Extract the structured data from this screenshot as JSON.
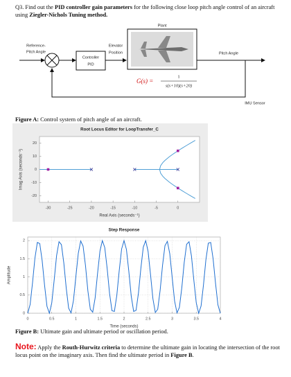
{
  "question": [
    {
      "text": "Q3. Find out the ",
      "bold": false
    },
    {
      "text": "PID controller gain parameters",
      "bold": true
    },
    {
      "text": " for the following close loop pitch angle control of an aircraft using ",
      "bold": false
    },
    {
      "text": "Ziegler-Nichols Tuning method.",
      "bold": true
    }
  ],
  "diagram": {
    "plant": "Plant",
    "input": [
      "Reference-",
      "Pitch Angle"
    ],
    "controller": [
      "Controller",
      "PID"
    ],
    "actuator": [
      "Elevator",
      "Position"
    ],
    "transfer": {
      "lhs": "G(s) =",
      "numerator": "1",
      "denominator": "s(s+10)(s+20)"
    },
    "output": "Pitch Angle",
    "sensor": "IMU Sensor"
  },
  "figure_a": [
    {
      "text": "Figure A:",
      "bold": true
    },
    {
      "text": " Control system of pitch angle of an aircraft.",
      "bold": false
    }
  ],
  "chart_data": [
    {
      "type": "line",
      "title": "Root Locus Editor for LoopTransfer_C",
      "xlabel": "Real Axis (seconds⁻¹)",
      "ylabel": "Imag Axis (seconds⁻¹)",
      "xlim": [
        -32,
        5
      ],
      "ylim": [
        -25,
        25
      ],
      "xticks": [
        -30,
        -25,
        -20,
        -15,
        -10,
        -5,
        0
      ],
      "yticks": [
        -20,
        -10,
        0,
        10,
        20
      ],
      "grid": false,
      "series": [
        {
          "color": "#4f9fd6",
          "marker": "none",
          "x": [
            -32,
            -20
          ],
          "values": [
            0,
            0
          ]
        },
        {
          "color": "#4f9fd6",
          "marker": "none",
          "x": [
            -10,
            -4.23,
            0
          ],
          "values": [
            0,
            0,
            0
          ]
        },
        {
          "color": "#4f9fd6",
          "marker": "none",
          "x": [
            -4.23,
            -4,
            -3.5,
            -3,
            -2,
            -1,
            0,
            1,
            2,
            3,
            4
          ],
          "values": [
            0,
            2.83,
            5.17,
            6.86,
            9.59,
            11.96,
            14.14,
            16.22,
            18.22,
            20.17,
            22.09
          ]
        },
        {
          "color": "#4f9fd6",
          "marker": "none",
          "x": [
            -4.23,
            -4,
            -3.5,
            -3,
            -2,
            -1,
            0,
            1,
            2,
            3,
            4
          ],
          "values": [
            0,
            -2.83,
            -5.17,
            -6.86,
            -9.59,
            -11.96,
            -14.14,
            -16.22,
            -18.22,
            -20.17,
            -22.09
          ]
        },
        {
          "color": "#2b2b8f",
          "marker": "x",
          "x": [
            -20,
            -10,
            0
          ],
          "values": [
            0,
            0,
            0
          ]
        },
        {
          "color": "#a020a0",
          "marker": "square",
          "x": [
            -30,
            0,
            0
          ],
          "values": [
            0,
            14.14,
            -14.14
          ]
        }
      ]
    },
    {
      "type": "line",
      "title": "Step Response",
      "xlabel": "Time (seconds)",
      "ylabel": "Amplitude",
      "xlim": [
        0,
        4
      ],
      "ylim": [
        0,
        2.1
      ],
      "xticks": [
        0,
        0.5,
        1,
        1.5,
        2,
        2.5,
        3,
        3.5,
        4
      ],
      "yticks": [
        0,
        0.5,
        1,
        1.5,
        2
      ],
      "grid": true,
      "x": [
        0,
        0.05,
        0.1,
        0.15,
        0.2,
        0.25,
        0.3,
        0.35,
        0.4,
        0.45,
        0.5,
        0.55,
        0.6,
        0.65,
        0.7,
        0.75,
        0.8,
        0.85,
        0.9,
        0.95,
        1,
        1.05,
        1.1,
        1.15,
        1.2,
        1.25,
        1.3,
        1.35,
        1.4,
        1.45,
        1.5,
        1.55,
        1.6,
        1.65,
        1.7,
        1.75,
        1.8,
        1.85,
        1.9,
        1.95,
        2,
        2.05,
        2.1,
        2.15,
        2.2,
        2.25,
        2.3,
        2.35,
        2.4,
        2.45,
        2.5,
        2.55,
        2.6,
        2.65,
        2.7,
        2.75,
        2.8,
        2.85,
        2.9,
        2.95,
        3,
        3.05,
        3.1,
        3.15,
        3.2,
        3.25,
        3.3,
        3.35,
        3.4,
        3.45,
        3.5,
        3.55,
        3.6,
        3.65,
        3.7,
        3.75,
        3.8,
        3.85,
        3.9,
        3.95,
        4
      ],
      "series": [
        {
          "color": "#1f6fd0",
          "marker": "none",
          "values": [
            0,
            0.24,
            0.84,
            1.52,
            1.95,
            1.92,
            1.45,
            0.77,
            0.19,
            0,
            0.29,
            0.92,
            1.59,
            1.97,
            1.89,
            1.38,
            0.69,
            0.14,
            0.01,
            0.35,
            1.01,
            1.65,
            1.99,
            1.85,
            1.31,
            0.61,
            0.11,
            0.03,
            0.42,
            1.09,
            1.71,
            2,
            1.81,
            1.23,
            0.54,
            0.07,
            0.05,
            0.49,
            1.17,
            1.77,
            2,
            1.76,
            1.15,
            0.47,
            0.05,
            0.08,
            0.56,
            1.24,
            1.82,
            2,
            1.7,
            1.07,
            0.4,
            0.02,
            0.11,
            0.63,
            1.32,
            1.86,
            1.98,
            1.64,
            0.99,
            0.34,
            0.01,
            0.16,
            0.7,
            1.4,
            1.9,
            1.97,
            1.58,
            0.91,
            0.29,
            0,
            0.2,
            0.78,
            1.47,
            1.93,
            1.95,
            1.5,
            0.83,
            0.23,
            0
          ]
        }
      ]
    }
  ],
  "figure_b": [
    {
      "text": "Figure B:",
      "bold": true
    },
    {
      "text": " Ultimate gain and ultimate period or oscillation period.",
      "bold": false
    }
  ],
  "note": {
    "label": "Note:",
    "text": [
      {
        "text": " Apply the ",
        "bold": false
      },
      {
        "text": "Routh-Hurwitz criteria",
        "bold": true
      },
      {
        "text": " to determine the ultimate gain in locating the intersection of the root locus point on the imaginary axis. Then find the ultimate period in ",
        "bold": false
      },
      {
        "text": "Figure B",
        "bold": true
      },
      {
        "text": ".",
        "bold": false
      }
    ]
  }
}
